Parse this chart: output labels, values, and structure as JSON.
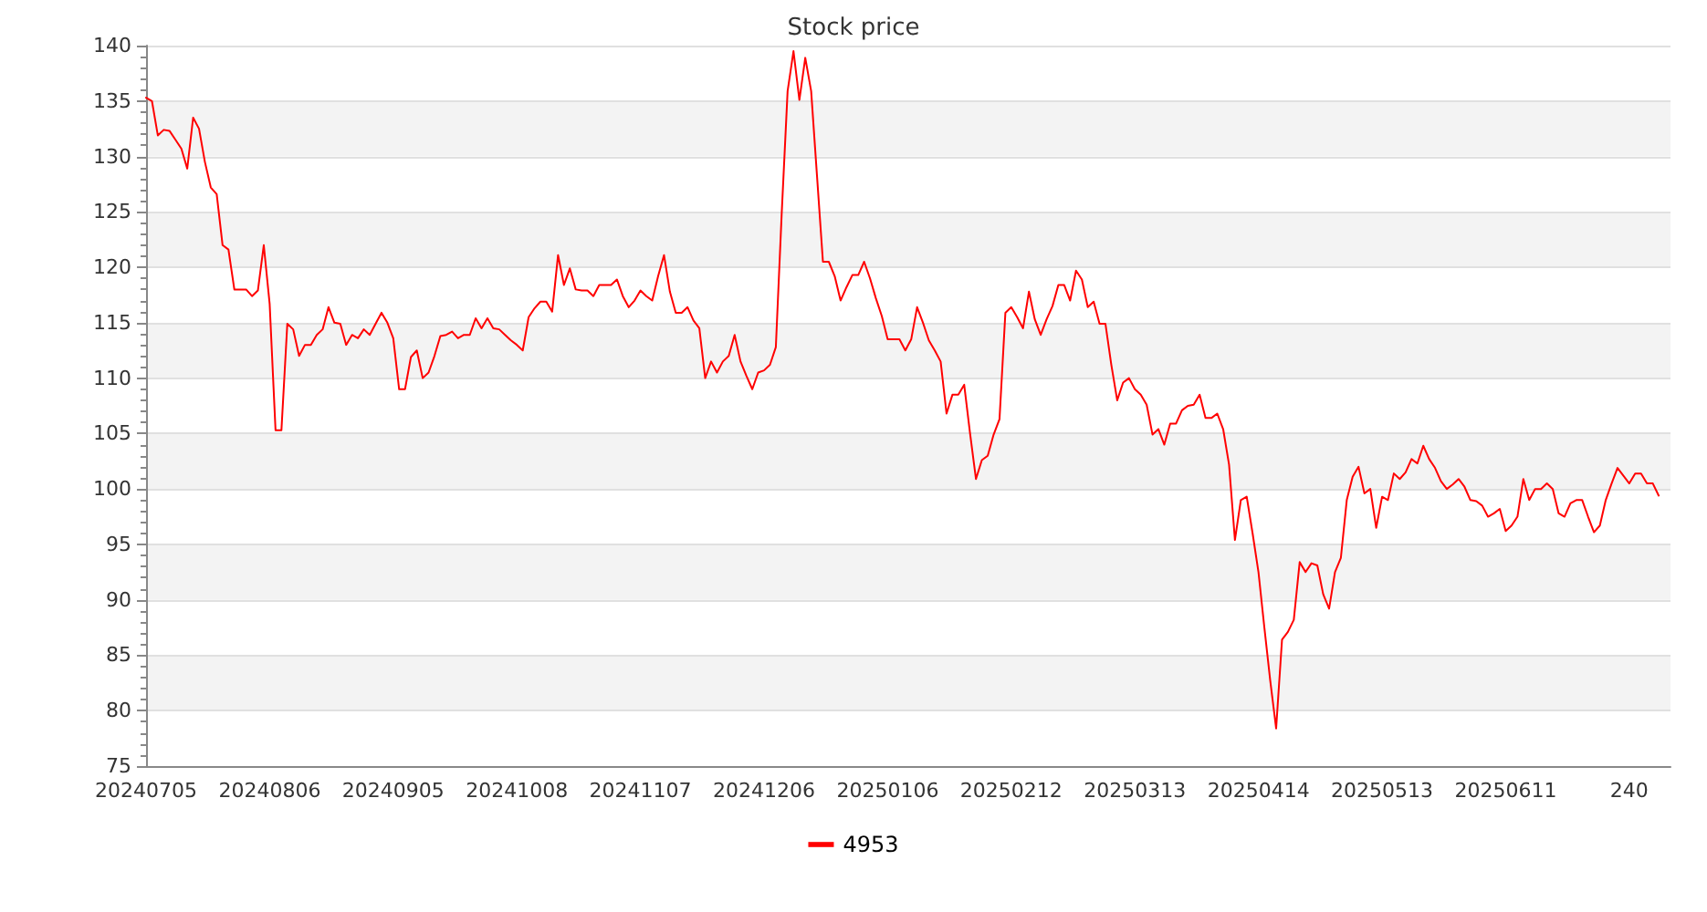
{
  "chart_data": {
    "type": "line",
    "title": "Stock price",
    "categories": [
      "20240705",
      null,
      null,
      null,
      null,
      null,
      null,
      null,
      null,
      null,
      null,
      null,
      null,
      null,
      null,
      null,
      null,
      null,
      null,
      null,
      null,
      "20240806",
      null,
      null,
      null,
      null,
      null,
      null,
      null,
      null,
      null,
      null,
      null,
      null,
      null,
      null,
      null,
      null,
      null,
      null,
      null,
      null,
      "20240905",
      null,
      null,
      null,
      null,
      null,
      null,
      null,
      null,
      null,
      null,
      null,
      null,
      null,
      null,
      null,
      null,
      null,
      null,
      null,
      null,
      "20241008",
      null,
      null,
      null,
      null,
      null,
      null,
      null,
      null,
      null,
      null,
      null,
      null,
      null,
      null,
      null,
      null,
      null,
      null,
      null,
      null,
      "20241107",
      null,
      null,
      null,
      null,
      null,
      null,
      null,
      null,
      null,
      null,
      null,
      null,
      null,
      null,
      null,
      null,
      null,
      null,
      null,
      null,
      "20241206",
      null,
      null,
      null,
      null,
      null,
      null,
      null,
      null,
      null,
      null,
      null,
      null,
      null,
      null,
      null,
      null,
      null,
      null,
      null,
      null,
      "20250106",
      null,
      null,
      null,
      null,
      null,
      null,
      null,
      null,
      null,
      null,
      null,
      null,
      null,
      null,
      null,
      null,
      null,
      null,
      null,
      null,
      "20250212",
      null,
      null,
      null,
      null,
      null,
      null,
      null,
      null,
      null,
      null,
      null,
      null,
      null,
      null,
      null,
      null,
      null,
      null,
      null,
      null,
      "20250313",
      null,
      null,
      null,
      null,
      null,
      null,
      null,
      null,
      null,
      null,
      null,
      null,
      null,
      null,
      null,
      null,
      null,
      null,
      null,
      null,
      "20250414",
      null,
      null,
      null,
      null,
      null,
      null,
      null,
      null,
      null,
      null,
      null,
      null,
      null,
      null,
      null,
      null,
      null,
      null,
      null,
      null,
      "20250513",
      null,
      null,
      null,
      null,
      null,
      null,
      null,
      null,
      null,
      null,
      null,
      null,
      null,
      null,
      null,
      null,
      null,
      null,
      null,
      null,
      "20250611",
      null,
      null,
      null,
      null,
      null,
      null,
      null,
      null,
      null,
      null,
      null,
      null,
      null,
      null,
      null,
      null,
      null,
      null,
      null,
      null,
      "240",
      null,
      null,
      null,
      null,
      null,
      null,
      null
    ],
    "series": [
      {
        "name": "4953",
        "color": "#ff0000",
        "values": [
          135.3,
          135.0,
          131.9,
          132.4,
          132.3,
          131.5,
          130.7,
          128.9,
          133.5,
          132.5,
          129.5,
          127.2,
          126.6,
          122.0,
          121.6,
          118.0,
          118.0,
          118.0,
          117.4,
          117.9,
          122.0,
          116.7,
          105.3,
          105.3,
          114.9,
          114.4,
          112.0,
          113.0,
          113.0,
          113.9,
          114.4,
          116.4,
          115.0,
          114.9,
          113.0,
          113.9,
          113.6,
          114.4,
          113.9,
          114.9,
          115.9,
          115.0,
          113.6,
          109.0,
          109.0,
          111.9,
          112.5,
          110.0,
          110.5,
          112.0,
          113.8,
          113.9,
          114.2,
          113.6,
          113.9,
          113.9,
          115.4,
          114.5,
          115.4,
          114.5,
          114.4,
          113.9,
          113.4,
          113.0,
          112.5,
          115.5,
          116.3,
          116.9,
          116.9,
          116.0,
          121.1,
          118.4,
          119.9,
          118.0,
          117.9,
          117.9,
          117.4,
          118.4,
          118.4,
          118.4,
          118.9,
          117.4,
          116.4,
          117.0,
          117.9,
          117.4,
          117.0,
          119.2,
          121.1,
          117.8,
          115.9,
          115.9,
          116.4,
          115.2,
          114.5,
          110.0,
          111.5,
          110.5,
          111.5,
          112.0,
          113.9,
          111.5,
          110.2,
          109.0,
          110.5,
          110.7,
          111.2,
          112.8,
          124.9,
          135.9,
          139.5,
          135.1,
          138.9,
          135.9,
          128.2,
          120.5,
          120.5,
          119.2,
          117.0,
          118.2,
          119.3,
          119.3,
          120.5,
          119.0,
          117.2,
          115.6,
          113.5,
          113.5,
          113.5,
          112.5,
          113.5,
          116.4,
          115.0,
          113.4,
          112.5,
          111.5,
          106.8,
          108.5,
          108.5,
          109.4,
          105.0,
          100.9,
          102.6,
          103.0,
          104.9,
          106.3,
          115.9,
          116.4,
          115.5,
          114.5,
          117.8,
          115.3,
          113.9,
          115.3,
          116.5,
          118.4,
          118.4,
          117.0,
          119.7,
          118.9,
          116.4,
          116.9,
          114.9,
          114.9,
          111.2,
          108.0,
          109.6,
          110.0,
          109.0,
          108.5,
          107.6,
          104.9,
          105.4,
          104.0,
          105.9,
          105.9,
          107.1,
          107.5,
          107.6,
          108.5,
          106.4,
          106.4,
          106.8,
          105.4,
          102.2,
          95.4,
          99.0,
          99.3,
          96.0,
          92.5,
          87.5,
          82.7,
          78.4,
          86.4,
          87.1,
          88.2,
          93.4,
          92.5,
          93.3,
          93.1,
          90.5,
          89.2,
          92.5,
          93.8,
          99.0,
          101.1,
          102.0,
          99.6,
          100.0,
          96.5,
          99.3,
          99.0,
          101.4,
          100.9,
          101.5,
          102.7,
          102.3,
          103.9,
          102.7,
          101.9,
          100.7,
          100.0,
          100.4,
          100.9,
          100.2,
          99.0,
          98.9,
          98.5,
          97.5,
          97.8,
          98.2,
          96.2,
          96.7,
          97.5,
          100.9,
          99.0,
          100.0,
          100.0,
          100.5,
          100.0,
          97.8,
          97.5,
          98.7,
          99.0,
          99.0,
          97.5,
          96.1,
          96.7,
          99.0,
          100.5,
          101.9,
          101.2,
          100.5,
          101.4,
          101.4,
          100.5,
          100.5,
          99.4,
          null,
          null
        ]
      }
    ],
    "ylim": [
      75,
      140
    ],
    "yticks": [
      75,
      80,
      85,
      90,
      95,
      100,
      105,
      110,
      115,
      120,
      125,
      130,
      135,
      140
    ],
    "grid": "y",
    "legend": "bottom",
    "marker": "none",
    "line_style": "solid"
  }
}
